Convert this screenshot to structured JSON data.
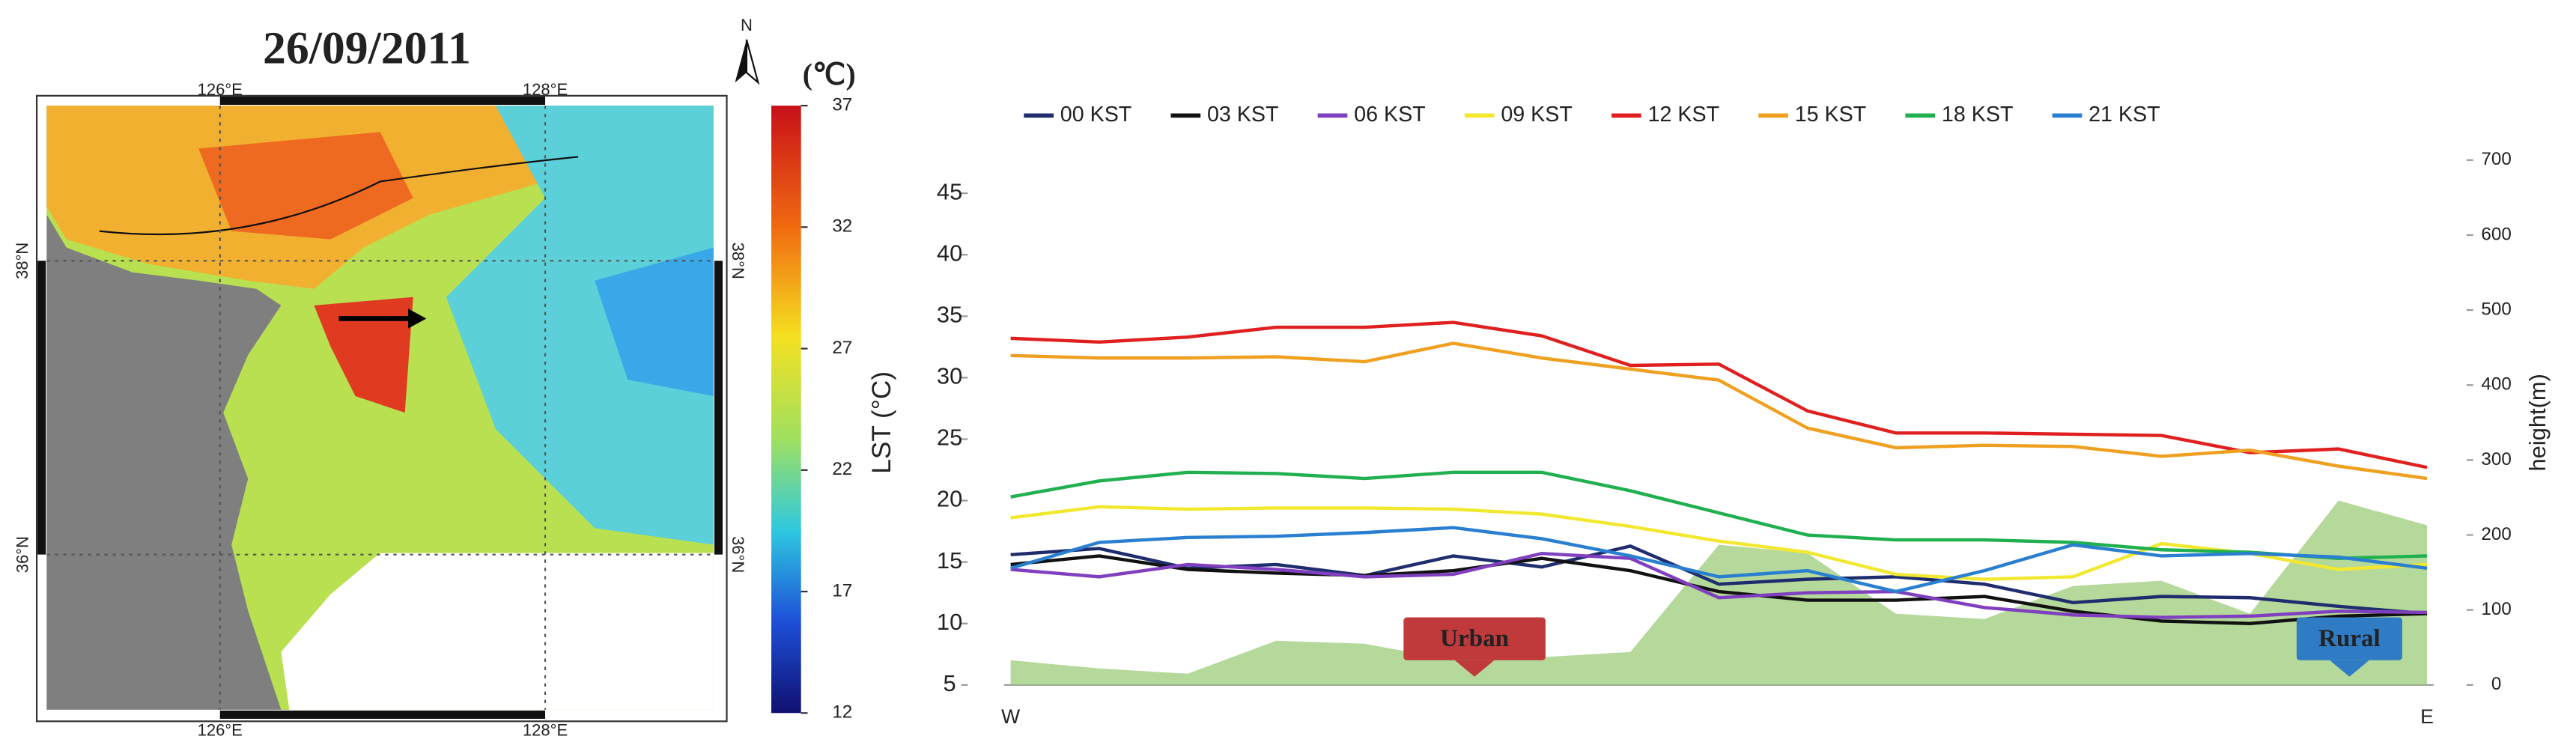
{
  "map": {
    "title": "26/09/2011",
    "north": "N",
    "lon_labels": [
      "126°E",
      "128°E"
    ],
    "lat_labels": [
      "38°N",
      "36°N"
    ],
    "colorbar": {
      "unit": "(℃)",
      "lim": [
        12,
        37
      ],
      "ticks": [
        37,
        32,
        27,
        22,
        17,
        12
      ]
    }
  },
  "chart_data": {
    "type": "line",
    "y_label": "LST (°C)",
    "y2_label": "height(m)",
    "categories": [
      "W",
      null,
      null,
      null,
      null,
      null,
      null,
      null,
      null,
      null,
      null,
      null,
      null,
      null,
      null,
      null,
      "E"
    ],
    "ylim": [
      5,
      47.7
    ],
    "yticks": [
      5,
      10,
      15,
      20,
      25,
      30,
      35,
      40,
      45
    ],
    "y2lim": [
      0,
      700
    ],
    "y2ticks": [
      0,
      100,
      200,
      300,
      400,
      500,
      600,
      700
    ],
    "annotations": [
      "Urban",
      "Rural"
    ],
    "series": [
      {
        "type": "area",
        "axis": "y2",
        "color": "#9ccc7a",
        "values": [
          33,
          22,
          15,
          59,
          55,
          33,
          37,
          44,
          187,
          176,
          95,
          88,
          132,
          139,
          95,
          246,
          213
        ]
      },
      {
        "name": "00 KST",
        "color": "#1f2d6e",
        "values": [
          15.6,
          16.1,
          14.5,
          14.8,
          13.9,
          15.5,
          14.6,
          16.3,
          13.2,
          13.6,
          13.8,
          13.2,
          11.7,
          12.2,
          12.1,
          11.4,
          10.8
        ]
      },
      {
        "name": "03 KST",
        "color": "#111111",
        "values": [
          14.8,
          15.5,
          14.4,
          14.1,
          13.9,
          14.3,
          15.3,
          14.3,
          12.6,
          11.9,
          11.9,
          12.2,
          11.0,
          10.2,
          10.0,
          10.6,
          10.8
        ]
      },
      {
        "name": "06 KST",
        "color": "#7f3fbf",
        "values": [
          14.4,
          13.8,
          14.8,
          14.4,
          13.8,
          14.0,
          15.7,
          15.3,
          12.1,
          12.5,
          12.6,
          11.3,
          10.7,
          10.5,
          10.6,
          11.0,
          10.9
        ]
      },
      {
        "name": "09 KST",
        "color": "#f2e830",
        "values": [
          18.6,
          19.5,
          19.3,
          19.4,
          19.4,
          19.3,
          18.9,
          17.9,
          16.7,
          15.8,
          14.0,
          13.6,
          13.8,
          16.5,
          15.7,
          14.4,
          14.8
        ]
      },
      {
        "name": "12 KST",
        "color": "#e02020",
        "values": [
          33.2,
          32.9,
          33.3,
          34.1,
          34.1,
          34.5,
          33.4,
          31.0,
          31.1,
          27.3,
          25.5,
          25.5,
          25.4,
          25.3,
          23.9,
          24.2,
          22.7
        ]
      },
      {
        "name": "15 KST",
        "color": "#f0a020",
        "values": [
          31.8,
          31.6,
          31.6,
          31.7,
          31.3,
          32.8,
          31.6,
          30.7,
          29.8,
          25.9,
          24.3,
          24.5,
          24.4,
          23.6,
          24.1,
          22.8,
          21.8
        ]
      },
      {
        "name": "18 KST",
        "color": "#20b050",
        "values": [
          20.3,
          21.6,
          22.3,
          22.2,
          21.8,
          22.3,
          22.3,
          20.8,
          19.0,
          17.2,
          16.8,
          16.8,
          16.6,
          16.0,
          15.8,
          15.3,
          15.5
        ]
      },
      {
        "name": "21 KST",
        "color": "#2a7fd0",
        "values": [
          14.5,
          16.6,
          17.0,
          17.1,
          17.4,
          17.8,
          16.9,
          15.5,
          13.8,
          14.3,
          12.6,
          14.3,
          16.4,
          15.5,
          15.7,
          15.4,
          14.5
        ]
      }
    ]
  }
}
